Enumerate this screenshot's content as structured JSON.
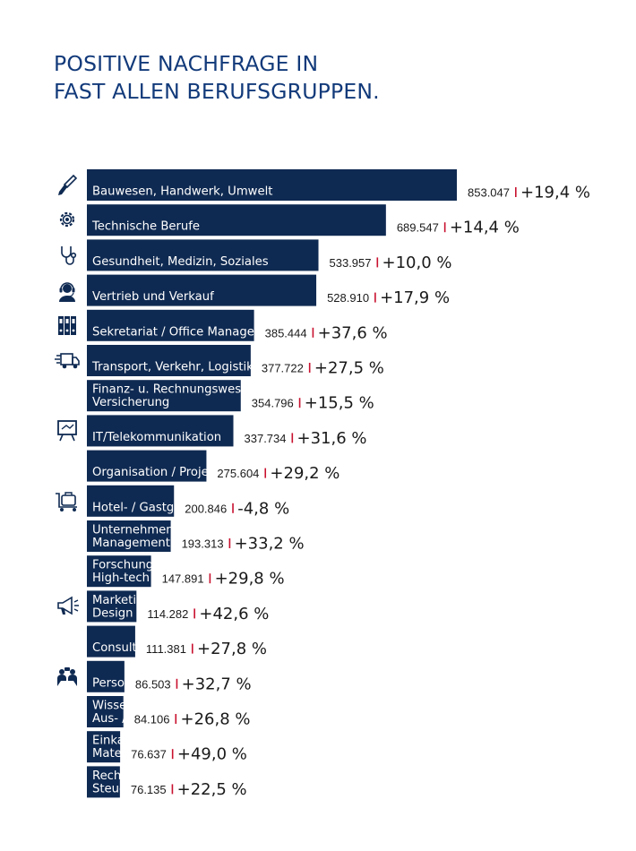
{
  "title": {
    "line1": "POSITIVE NACHFRAGE IN",
    "line2": "FAST ALLEN BERUFSGRUPPEN."
  },
  "colors": {
    "bar": "#0f2a52",
    "title": "#123a7a",
    "separator": "#c8102e",
    "text": "#1a1a1a",
    "icon": "#0f2a52"
  },
  "chart_data": {
    "type": "bar",
    "orientation": "horizontal",
    "categories": [
      [
        "Bauwesen, Handwerk, Umwelt"
      ],
      [
        "Technische Berufe"
      ],
      [
        "Gesundheit, Medizin, Soziales"
      ],
      [
        "Vertrieb und Verkauf"
      ],
      [
        "Sekretariat / Office Management/Verwaltung"
      ],
      [
        "Transport, Verkehr, Logistik, Lager"
      ],
      [
        "Finanz- u. Rechnungswesen, Controlling,",
        "Versicherung"
      ],
      [
        "IT/Telekommunikation"
      ],
      [
        "Organisation / Projektmanagement"
      ],
      [
        "Hotel- / Gastgewerbe, Empfang"
      ],
      [
        "Unternehmensführung /",
        "Management"
      ],
      [
        "Forschung / Entwicklung,",
        "High-tech / nat.-wiss. Berufe"
      ],
      [
        "Marketing, PR, Werbung,",
        "Design / Multimedia"
      ],
      [
        "Consulting, Beratung"
      ],
      [
        "Personalwesen"
      ],
      [
        "Wissenschaft,",
        "Aus- / Weiterbildung"
      ],
      [
        "Einkauf,",
        "Materialwirtschaft"
      ],
      [
        "Rechts- und",
        "Steuerwesen"
      ]
    ],
    "values": [
      853047,
      689547,
      533957,
      528910,
      385444,
      377722,
      354796,
      337734,
      275604,
      200846,
      193313,
      147891,
      114282,
      111381,
      86503,
      84106,
      76637,
      76135
    ],
    "value_labels": [
      "853.047",
      "689.547",
      "533.957",
      "528.910",
      "385.444",
      "377.722",
      "354.796",
      "337.734",
      "275.604",
      "200.846",
      "193.313",
      "147.891",
      "114.282",
      "111.381",
      "86.503",
      "84.106",
      "76.637",
      "76.135"
    ],
    "change_labels": [
      "+19,4 %",
      "+14,4 %",
      "+10,0 %",
      "+17,9 %",
      "+37,6 %",
      "+27,5 %",
      "+15,5 %",
      "+31,6 %",
      "+29,2 %",
      "-4,8 %",
      "+33,2 %",
      "+29,8 %",
      "+42,6 %",
      "+27,8 %",
      "+32,7 %",
      "+26,8 %",
      "+49,0 %",
      "+22,5 %"
    ],
    "changes": [
      19.4,
      14.4,
      10.0,
      17.9,
      37.6,
      27.5,
      15.5,
      31.6,
      29.2,
      -4.8,
      33.2,
      29.8,
      42.6,
      27.8,
      32.7,
      26.8,
      49.0,
      22.5
    ],
    "icons": [
      "trowel-icon",
      "gear-icon",
      "stethoscope-icon",
      "headset-icon",
      "binders-icon",
      "truck-icon",
      "",
      "presentation-board-icon",
      "",
      "luggage-cart-icon",
      "",
      "",
      "megaphone-icon",
      "",
      "people-talking-icon",
      "",
      "",
      ""
    ],
    "grid": false,
    "legend": "none"
  }
}
